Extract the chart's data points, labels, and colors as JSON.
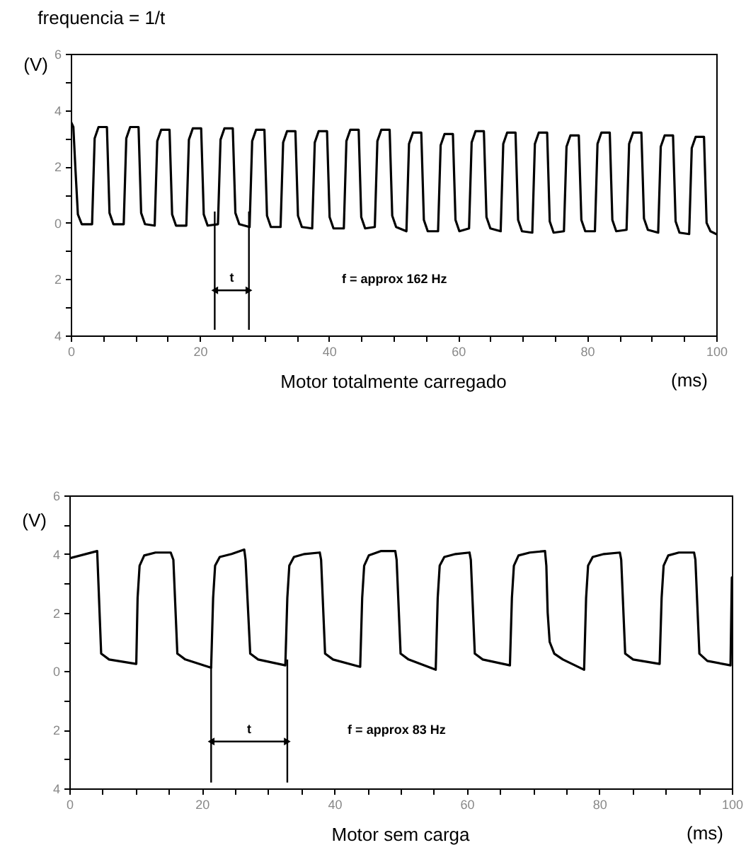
{
  "chart_data": [
    {
      "type": "line",
      "title": "frequencia = 1/t",
      "ylabel": "(V)",
      "xlabel": "(ms)",
      "annotations": [
        "f = approx 162 Hz",
        "Motor totalmente carregado"
      ],
      "xlim": [
        0,
        100
      ],
      "xticks": [
        0,
        {
          "value": 5,
          "label": null
        },
        {
          "value": 10,
          "label": null
        },
        {
          "value": 15,
          "label": null
        },
        20,
        {
          "value": 25,
          "label": null
        },
        {
          "value": 30,
          "label": null
        },
        {
          "value": 35,
          "label": null
        },
        40,
        {
          "value": 45,
          "label": null
        },
        {
          "value": 50,
          "label": null
        },
        {
          "value": 55,
          "label": null
        },
        60,
        {
          "value": 65,
          "label": null
        },
        {
          "value": 70,
          "label": null
        },
        {
          "value": 75,
          "label": null
        },
        80,
        {
          "value": 85,
          "label": null
        },
        {
          "value": 90,
          "label": null
        },
        {
          "value": 95,
          "label": null
        },
        100
      ],
      "ylim": [
        -4,
        6
      ],
      "yticks": [
        {
          "value": -4,
          "label": "4"
        },
        {
          "value": -3,
          "label": null
        },
        {
          "value": -2,
          "label": "2"
        },
        {
          "value": -1,
          "label": null
        },
        0,
        {
          "value": 1,
          "label": null
        },
        2,
        {
          "value": 3,
          "label": null
        },
        4,
        {
          "value": 5,
          "label": null
        },
        6
      ],
      "grid": false,
      "ref_lines": [
        {
          "axis": "x",
          "value": 22.3,
          "label": null,
          "color": "#000000"
        },
        {
          "axis": "x",
          "value": 27.6,
          "label": "t",
          "color": "#000000"
        }
      ],
      "series": [
        {
          "color": "#000000",
          "x": [
            0,
            0.4,
            0.7,
            1.1,
            1.7,
            3.3,
            3.7,
            4.3,
            5.6,
            6.0,
            6.6,
            8.2,
            8.6,
            9.2,
            10.5,
            10.9,
            11.5,
            13.0,
            13.4,
            14.0,
            15.3,
            15.7,
            16.3,
            17.9,
            18.3,
            18.9,
            20.2,
            20.6,
            21.2,
            22.8,
            23.2,
            23.8,
            25.1,
            25.5,
            26.1,
            27.7,
            28.1,
            28.7,
            30.0,
            30.4,
            31.0,
            32.5,
            32.9,
            33.5,
            34.8,
            35.2,
            35.8,
            37.4,
            37.8,
            38.4,
            39.7,
            40.1,
            40.7,
            42.3,
            42.7,
            43.3,
            44.6,
            45.0,
            45.6,
            47.1,
            47.5,
            48.1,
            49.4,
            49.8,
            50.4,
            52.0,
            52.4,
            53.0,
            54.3,
            54.7,
            55.3,
            56.9,
            57.3,
            57.9,
            59.2,
            59.6,
            60.2,
            61.7,
            62.1,
            62.7,
            64.0,
            64.4,
            65.0,
            66.6,
            67.0,
            67.6,
            68.9,
            69.3,
            69.9,
            71.5,
            71.9,
            72.5,
            73.8,
            74.2,
            74.8,
            76.4,
            76.8,
            77.4,
            78.7,
            79.1,
            79.7,
            81.2,
            81.6,
            82.2,
            83.5,
            83.9,
            84.5,
            86.1,
            86.5,
            87.1,
            88.4,
            88.8,
            89.4,
            91.0,
            91.4,
            92.0,
            93.3,
            93.7,
            94.3,
            95.8,
            96.2,
            96.8,
            98.1,
            98.5,
            99.1,
            100
          ],
          "values": [
            3.6,
            3.4,
            2.0,
            0.3,
            -0.05,
            -0.05,
            3.0,
            3.4,
            3.4,
            0.35,
            -0.05,
            -0.05,
            3.0,
            3.4,
            3.4,
            0.35,
            -0.05,
            -0.1,
            2.9,
            3.3,
            3.3,
            0.3,
            -0.1,
            -0.1,
            2.95,
            3.35,
            3.35,
            0.3,
            -0.1,
            -0.05,
            2.95,
            3.35,
            3.35,
            0.35,
            -0.05,
            -0.15,
            2.9,
            3.3,
            3.3,
            0.25,
            -0.15,
            -0.15,
            2.85,
            3.25,
            3.25,
            0.25,
            -0.15,
            -0.2,
            2.85,
            3.25,
            3.25,
            0.2,
            -0.2,
            -0.2,
            2.9,
            3.3,
            3.3,
            0.2,
            -0.2,
            -0.15,
            2.9,
            3.3,
            3.3,
            0.25,
            -0.15,
            -0.3,
            2.8,
            3.2,
            3.2,
            0.1,
            -0.3,
            -0.3,
            2.75,
            3.15,
            3.15,
            0.1,
            -0.3,
            -0.2,
            2.85,
            3.25,
            3.25,
            0.2,
            -0.2,
            -0.3,
            2.8,
            3.2,
            3.2,
            0.1,
            -0.3,
            -0.35,
            2.8,
            3.2,
            3.2,
            0.05,
            -0.35,
            -0.3,
            2.7,
            3.1,
            3.1,
            0.1,
            -0.3,
            -0.3,
            2.8,
            3.2,
            3.2,
            0.1,
            -0.3,
            -0.25,
            2.8,
            3.2,
            3.2,
            0.15,
            -0.25,
            -0.35,
            2.7,
            3.1,
            3.1,
            0.05,
            -0.35,
            -0.4,
            2.65,
            3.05,
            3.05,
            0.0,
            -0.3,
            -0.4
          ]
        }
      ]
    },
    {
      "type": "line",
      "ylabel": "(V)",
      "xlabel": "(ms)",
      "annotations": [
        "f = approx 83 Hz",
        "Motor sem carga"
      ],
      "xlim": [
        0,
        100
      ],
      "xticks": [
        0,
        {
          "value": 5,
          "label": null
        },
        {
          "value": 10,
          "label": null
        },
        {
          "value": 15,
          "label": null
        },
        20,
        {
          "value": 25,
          "label": null
        },
        {
          "value": 30,
          "label": null
        },
        {
          "value": 35,
          "label": null
        },
        40,
        {
          "value": 45,
          "label": null
        },
        {
          "value": 50,
          "label": null
        },
        {
          "value": 55,
          "label": null
        },
        60,
        {
          "value": 65,
          "label": null
        },
        {
          "value": 70,
          "label": null
        },
        {
          "value": 75,
          "label": null
        },
        80,
        {
          "value": 85,
          "label": null
        },
        {
          "value": 90,
          "label": null
        },
        {
          "value": 95,
          "label": null
        },
        100
      ],
      "ylim": [
        -4,
        6
      ],
      "yticks": [
        {
          "value": -4,
          "label": "4"
        },
        {
          "value": -3,
          "label": null
        },
        {
          "value": -2,
          "label": "2"
        },
        {
          "value": -1,
          "label": null
        },
        0,
        {
          "value": 1,
          "label": null
        },
        2,
        {
          "value": 3,
          "label": null
        },
        4,
        {
          "value": 5,
          "label": null
        },
        6
      ],
      "grid": false,
      "ref_lines": [
        {
          "axis": "x",
          "value": 21.4,
          "label": null,
          "color": "#000000"
        },
        {
          "axis": "x",
          "value": 32.9,
          "label": "t",
          "color": "#000000"
        }
      ],
      "series": [
        {
          "color": "#000000",
          "x": [
            0,
            4.2,
            4.8,
            6,
            10.1,
            10.3,
            10.6,
            11.3,
            13,
            15.3,
            15.7,
            16.3,
            17.5,
            21.4,
            21.7,
            22,
            22.7,
            24.5,
            26.4,
            26.6,
            27.3,
            28.5,
            32.6,
            32.9,
            33.2,
            33.9,
            35.5,
            37.8,
            38,
            38.6,
            39.8,
            43.9,
            44.2,
            44.5,
            45.2,
            47,
            49.2,
            49.4,
            50,
            51.2,
            55.3,
            55.6,
            55.9,
            56.6,
            58.3,
            60.4,
            60.6,
            61.2,
            62.4,
            66.5,
            66.8,
            67.1,
            67.8,
            69.5,
            71.8,
            72,
            72.2,
            72.5,
            73.2,
            74.5,
            77.7,
            78,
            78.3,
            79,
            80.7,
            83.1,
            83.3,
            83.9,
            85.1,
            89.1,
            89.4,
            89.7,
            90.4,
            92,
            94.3,
            94.5,
            95.1,
            96.3,
            99.8,
            100
          ],
          "values": [
            3.85,
            4.1,
            0.6,
            0.4,
            0.25,
            2.5,
            3.6,
            3.95,
            4.05,
            4.05,
            3.8,
            0.6,
            0.4,
            0.12,
            2.5,
            3.6,
            3.9,
            4.0,
            4.15,
            3.8,
            0.6,
            0.4,
            0.2,
            2.5,
            3.6,
            3.9,
            4.0,
            4.05,
            3.8,
            0.6,
            0.4,
            0.15,
            2.5,
            3.6,
            3.95,
            4.1,
            4.1,
            3.8,
            0.6,
            0.4,
            0.05,
            2.5,
            3.6,
            3.9,
            4.0,
            4.05,
            3.8,
            0.6,
            0.4,
            0.2,
            2.5,
            3.6,
            3.95,
            4.05,
            4.1,
            3.6,
            2.0,
            1.0,
            0.6,
            0.4,
            0.05,
            2.5,
            3.6,
            3.9,
            4.0,
            4.05,
            3.8,
            0.6,
            0.4,
            0.25,
            2.5,
            3.6,
            3.95,
            4.05,
            4.05,
            3.8,
            0.6,
            0.35,
            0.2,
            3.2
          ]
        }
      ]
    }
  ]
}
